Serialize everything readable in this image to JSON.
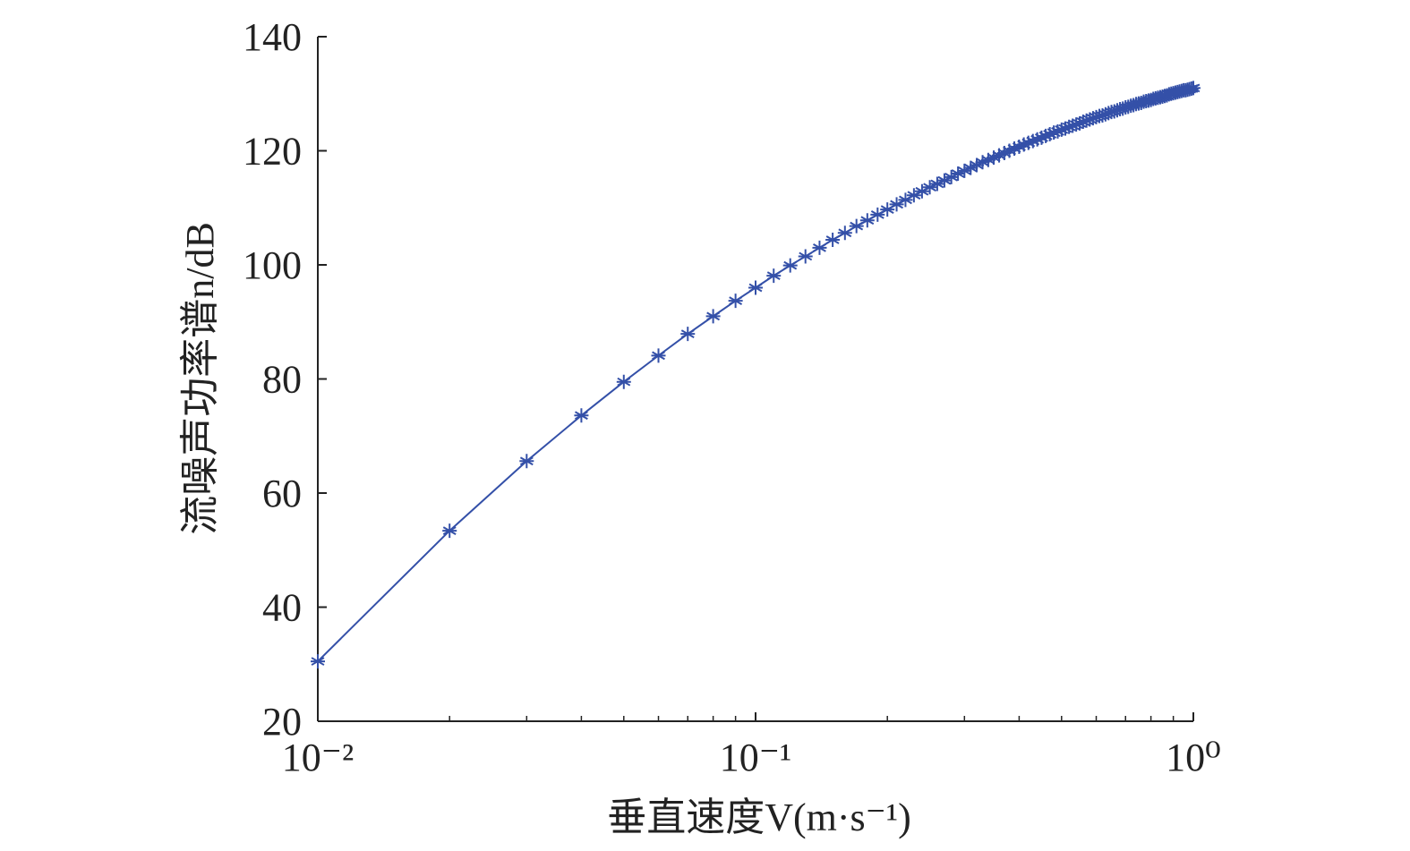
{
  "chart_data": {
    "type": "line",
    "xlabel": "垂直速度V(m·s⁻¹)",
    "ylabel": "流噪声功率谱n/dB",
    "xscale": "log",
    "xlim": [
      0.01,
      1
    ],
    "ylim": [
      20,
      140
    ],
    "xticks": [
      {
        "value": 0.01,
        "label": "10⁻²"
      },
      {
        "value": 0.1,
        "label": "10⁻¹"
      },
      {
        "value": 1,
        "label": "10⁰"
      }
    ],
    "xminorticks": [
      0.02,
      0.03,
      0.04,
      0.05,
      0.06,
      0.07,
      0.08,
      0.09,
      0.2,
      0.3,
      0.4,
      0.5,
      0.6,
      0.7,
      0.8,
      0.9
    ],
    "yticks": [
      20,
      40,
      60,
      80,
      100,
      120,
      140
    ],
    "grid": false,
    "marker": "asterisk",
    "x": [
      0.01,
      0.02,
      0.03,
      0.04,
      0.05,
      0.06,
      0.07,
      0.08,
      0.09,
      0.1,
      0.11,
      0.12,
      0.13,
      0.14,
      0.15,
      0.16,
      0.17,
      0.18,
      0.19,
      0.2,
      0.21,
      0.22,
      0.23,
      0.24,
      0.25,
      0.26,
      0.27,
      0.28,
      0.29,
      0.3,
      0.31,
      0.32,
      0.33,
      0.34,
      0.35,
      0.36,
      0.37,
      0.38,
      0.39,
      0.4,
      0.41,
      0.42,
      0.43,
      0.44,
      0.45,
      0.46,
      0.47,
      0.48,
      0.49,
      0.5,
      0.51,
      0.52,
      0.53,
      0.54,
      0.55,
      0.56,
      0.57,
      0.58,
      0.59,
      0.6,
      0.61,
      0.62,
      0.63,
      0.64,
      0.65,
      0.66,
      0.67,
      0.68,
      0.69,
      0.7,
      0.71,
      0.72,
      0.73,
      0.74,
      0.75,
      0.76,
      0.77,
      0.78,
      0.79,
      0.8,
      0.81,
      0.82,
      0.83,
      0.84,
      0.85,
      0.86,
      0.87,
      0.88,
      0.89,
      0.9,
      0.91,
      0.92,
      0.93,
      0.94,
      0.95,
      0.96,
      0.97,
      0.98,
      0.99,
      1
    ],
    "series": [
      {
        "color": "#3450a8",
        "values": [
          30.5,
          53.4,
          65.6,
          73.6,
          79.5,
          84.1,
          87.9,
          91.0,
          93.7,
          96.0,
          98.1,
          99.9,
          101.5,
          103.0,
          104.4,
          105.6,
          106.8,
          107.8,
          108.8,
          109.7,
          110.6,
          111.4,
          112.2,
          112.9,
          113.6,
          114.2,
          114.8,
          115.4,
          116.0,
          116.5,
          117.0,
          117.5,
          118.0,
          118.4,
          118.8,
          119.2,
          119.6,
          120.0,
          120.4,
          120.7,
          121.1,
          121.4,
          121.7,
          122.0,
          122.3,
          122.6,
          122.9,
          123.2,
          123.4,
          123.7,
          123.9,
          124.2,
          124.4,
          124.6,
          124.8,
          125.1,
          125.3,
          125.5,
          125.7,
          125.9,
          126.1,
          126.2,
          126.4,
          126.6,
          126.8,
          126.9,
          127.1,
          127.3,
          127.4,
          127.6,
          127.7,
          127.9,
          128.0,
          128.2,
          128.3,
          128.4,
          128.6,
          128.7,
          128.8,
          128.9,
          129.1,
          129.2,
          129.3,
          129.4,
          129.5,
          129.6,
          129.7,
          129.9,
          130.0,
          130.1,
          130.2,
          130.3,
          130.4,
          130.5,
          130.6,
          130.6,
          130.7,
          130.8,
          130.9,
          131.0
        ]
      }
    ]
  }
}
